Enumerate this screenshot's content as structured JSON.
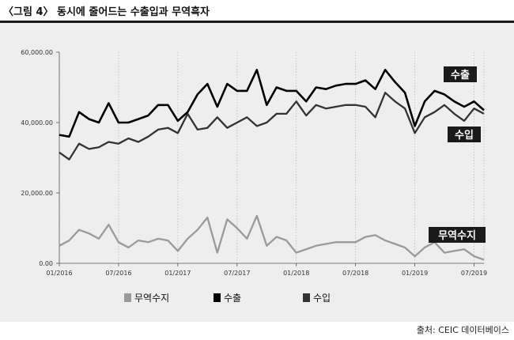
{
  "header": {
    "title": "〈그림 4〉 동시에 줄어드는 수출입과 무역흑자"
  },
  "source": "출처: CEIC 데이터베이스",
  "colors": {
    "exports": "#000000",
    "imports": "#333333",
    "balance": "#9a9a9a",
    "label_box": "#1a1a1a",
    "panel": "#eeeeee",
    "grid": "#bdbdbd"
  },
  "chart_data": {
    "type": "line",
    "title": "",
    "xlabel": "",
    "ylabel": "",
    "ylim": [
      0,
      60000
    ],
    "yticks": [
      0,
      20000,
      40000,
      60000
    ],
    "ytick_labels": [
      "0.00",
      "20,000.00",
      "40,000.00",
      "60,000.00"
    ],
    "xtick_labels": [
      "01/2016",
      "07/2016",
      "01/2017",
      "07/2017",
      "01/2018",
      "07/2018",
      "01/2019",
      "07/2019"
    ],
    "xtick_index": [
      0,
      6,
      12,
      18,
      24,
      30,
      36,
      42
    ],
    "grid": "vertical dotted",
    "legend": {
      "placement": "bottom",
      "entries": [
        "무역수지",
        "수출",
        "수입"
      ]
    },
    "series": [
      {
        "name": "수출",
        "values": [
          36500,
          36000,
          43000,
          41000,
          40000,
          45500,
          40000,
          40000,
          41000,
          42000,
          45000,
          45000,
          40500,
          43000,
          48000,
          51000,
          44500,
          51000,
          49000,
          49000,
          55000,
          45000,
          50000,
          49000,
          49000,
          46000,
          50000,
          49500,
          50500,
          51000,
          51000,
          52000,
          49500,
          55000,
          51500,
          48500,
          39000,
          46000,
          49000,
          48000,
          46000,
          44500,
          46000,
          43500
        ]
      },
      {
        "name": "수입",
        "values": [
          31500,
          29500,
          34000,
          32500,
          33000,
          34500,
          34000,
          35500,
          34500,
          36000,
          38000,
          38500,
          37000,
          42500,
          38000,
          38500,
          41500,
          38500,
          40000,
          41500,
          39000,
          40000,
          42500,
          42500,
          46000,
          42000,
          45000,
          44000,
          44500,
          45000,
          45000,
          44500,
          41500,
          48500,
          46000,
          44000,
          37000,
          41500,
          43000,
          45000,
          42500,
          40500,
          44000,
          42500
        ]
      },
      {
        "name": "무역수지",
        "values": [
          5000,
          6500,
          9500,
          8500,
          7000,
          11000,
          6000,
          4500,
          6500,
          6000,
          7000,
          6500,
          3500,
          7000,
          9500,
          13000,
          3000,
          12500,
          10000,
          7000,
          13500,
          5000,
          7500,
          6500,
          3000,
          4000,
          5000,
          5500,
          6000,
          6000,
          6000,
          7500,
          8000,
          6500,
          5500,
          4500,
          2000,
          4500,
          6000,
          3000,
          3500,
          4000,
          2000,
          1000
        ]
      }
    ],
    "annotations": [
      "수출",
      "수입",
      "무역수지"
    ]
  }
}
